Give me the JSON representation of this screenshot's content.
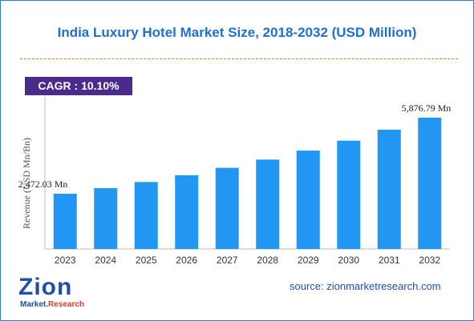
{
  "title": "India Luxury Hotel Market Size, 2018-2032 (USD Million)",
  "cagr_label": "CAGR : 10.10%",
  "source": "source: zionmarketresearch.com",
  "logo": {
    "word": "Zion",
    "sub_a": "Market.",
    "sub_b": "Research"
  },
  "colors": {
    "title": "#1f6fd1",
    "bar": "#2196f3",
    "cagr_bg": "#4a2b8c",
    "divider": "#e8743b"
  },
  "chart_data": {
    "type": "bar",
    "title": "India Luxury Hotel Market Size, 2018-2032 (USD Million)",
    "ylabel": "Revenue (USD Mn/Bn)",
    "xlabel": "",
    "categories": [
      "2023",
      "2024",
      "2025",
      "2026",
      "2027",
      "2028",
      "2029",
      "2030",
      "2031",
      "2032"
    ],
    "values": [
      2472.03,
      2721.7,
      2996.6,
      3299.3,
      3632.5,
      3999.4,
      4403.3,
      4848.1,
      5337.7,
      5876.79
    ],
    "ylim": [
      0,
      6450
    ],
    "grid": false,
    "data_labels": [
      {
        "index": 0,
        "text": "2,472.03 Mn"
      },
      {
        "index": 9,
        "text": "5,876.79 Mn"
      }
    ]
  }
}
